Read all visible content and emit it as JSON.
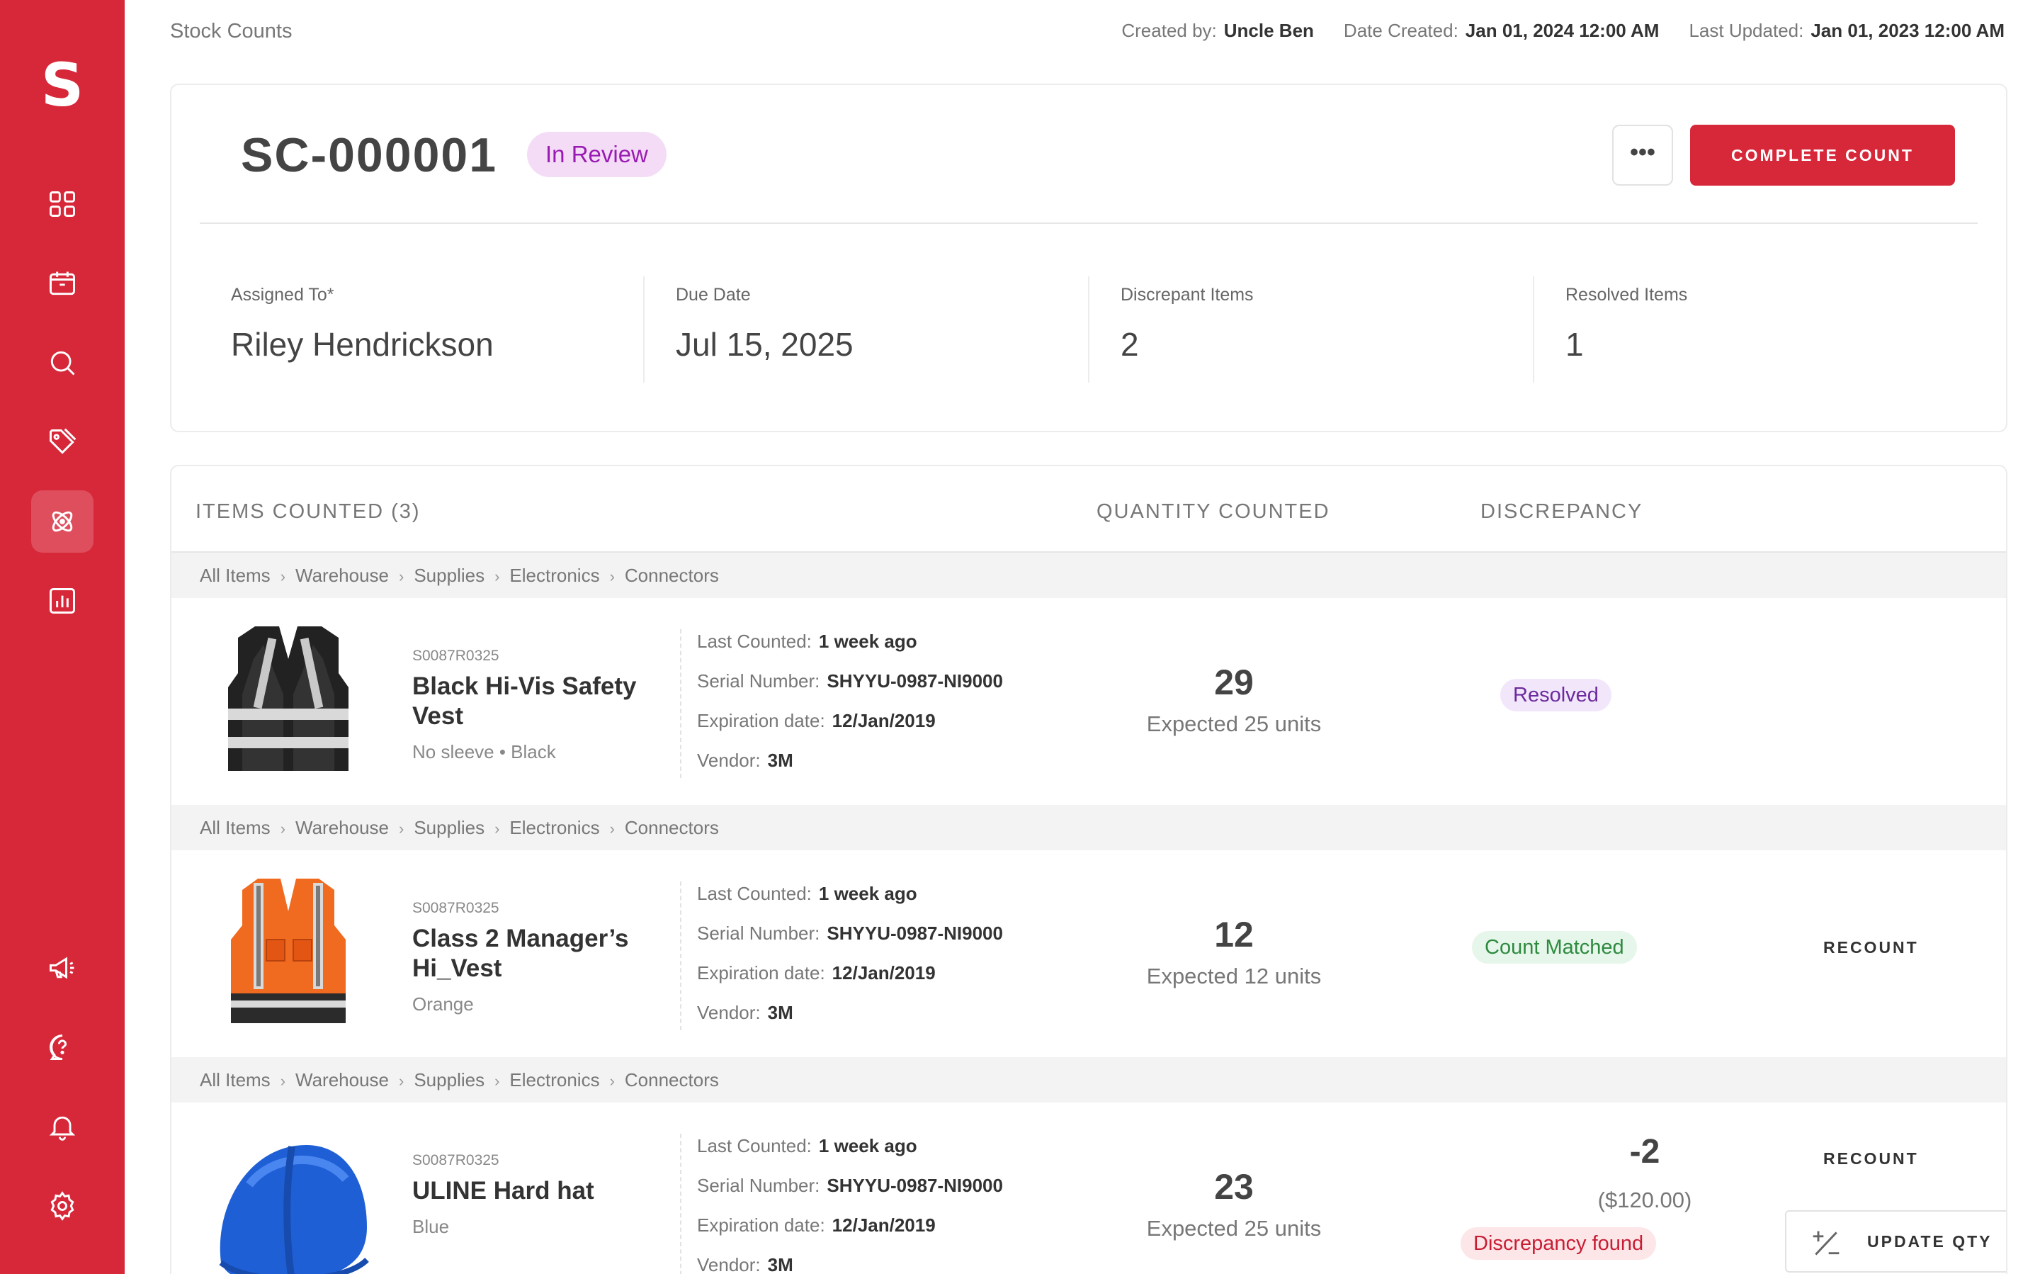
{
  "app": {
    "logo_letter": "S",
    "brand_color": "#d7283a"
  },
  "sidebar": {
    "top_items": [
      {
        "name": "dashboard",
        "icon": "grid-icon"
      },
      {
        "name": "inventory",
        "icon": "box-icon"
      },
      {
        "name": "search",
        "icon": "search-icon"
      },
      {
        "name": "tags",
        "icon": "tag-icon"
      },
      {
        "name": "stock-counts",
        "icon": "atom-icon",
        "active": true
      },
      {
        "name": "reports",
        "icon": "bar-chart-icon"
      }
    ],
    "bottom_items": [
      {
        "name": "announcements",
        "icon": "megaphone-icon"
      },
      {
        "name": "help",
        "icon": "help-icon"
      },
      {
        "name": "notifications",
        "icon": "bell-icon"
      },
      {
        "name": "settings",
        "icon": "gear-icon"
      }
    ]
  },
  "header": {
    "breadcrumb": "Stock Counts",
    "created_by_label": "Created by:",
    "created_by": "Uncle Ben",
    "date_created_label": "Date Created:",
    "date_created": "Jan 01, 2024 12:00 AM",
    "last_updated_label": "Last Updated:",
    "last_updated": "Jan 01, 2023 12:00 AM"
  },
  "count": {
    "id": "SC-000001",
    "status": "In Review",
    "more_label": "•••",
    "complete_label": "COMPLETE COUNT",
    "stats": [
      {
        "label": "Assigned To*",
        "value": "Riley Hendrickson"
      },
      {
        "label": "Due Date",
        "value": "Jul 15, 2025"
      },
      {
        "label": "Discrepant Items",
        "value": "2"
      },
      {
        "label": "Resolved Items",
        "value": "1"
      }
    ]
  },
  "table": {
    "col_items": "ITEMS COUNTED (3)",
    "col_qty": "QUANTITY COUNTED",
    "col_disc": "DISCREPANCY",
    "breadcrumb": [
      "All Items",
      "Warehouse",
      "Supplies",
      "Electronics",
      "Connectors"
    ],
    "breadcrumb_sep": "›",
    "labels": {
      "last_counted": "Last Counted:",
      "serial": "Serial Number:",
      "expiration": "Expiration date:",
      "vendor": "Vendor:"
    },
    "recount_label": "RECOUNT",
    "update_qty_label": "UPDATE QTY",
    "items": [
      {
        "sku": "S0087R0325",
        "name": "Black Hi-Vis Safety Vest",
        "variant": "No sleeve • Black",
        "last_counted": "1 week ago",
        "serial": "SHYYU-0987-NI9000",
        "expiration": "12/Jan/2019",
        "vendor": "3M",
        "counted": "29",
        "expected": "Expected 25 units",
        "status": "Resolved"
      },
      {
        "sku": "S0087R0325",
        "name": "Class 2 Manager’s Hi_Vest",
        "variant": "Orange",
        "last_counted": "1 week ago",
        "serial": "SHYYU-0987-NI9000",
        "expiration": "12/Jan/2019",
        "vendor": "3M",
        "counted": "12",
        "expected": "Expected 12 units",
        "status": "Count Matched"
      },
      {
        "sku": "S0087R0325",
        "name": "ULINE Hard hat",
        "variant": "Blue",
        "last_counted": "1 week ago",
        "serial": "SHYYU-0987-NI9000",
        "expiration": "12/Jan/2019",
        "vendor": "3M",
        "counted": "23",
        "expected": "Expected 25 units",
        "discrepancy": "-2",
        "discrepancy_amount": "($120.00)",
        "status": "Discrepancy found"
      }
    ]
  }
}
